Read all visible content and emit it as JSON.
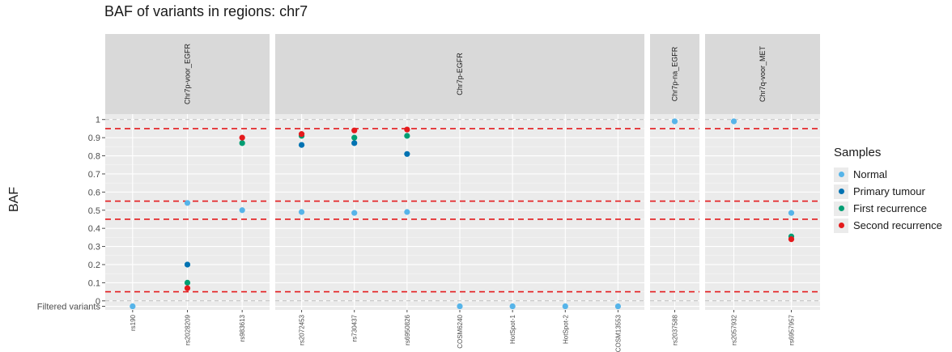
{
  "chart_data": {
    "type": "scatter",
    "title": "BAF of variants in regions: chr7",
    "xlabel": "",
    "ylabel": "BAF",
    "ylim": [
      -0.05,
      1.03
    ],
    "yticks": [
      {
        "value": 1,
        "label": "1"
      },
      {
        "value": 0.9,
        "label": "0.9"
      },
      {
        "value": 0.8,
        "label": "0.8"
      },
      {
        "value": 0.7,
        "label": "0.7"
      },
      {
        "value": 0.6,
        "label": "0.6"
      },
      {
        "value": 0.5,
        "label": "0.5"
      },
      {
        "value": 0.4,
        "label": "0.4"
      },
      {
        "value": 0.3,
        "label": "0.3"
      },
      {
        "value": 0.2,
        "label": "0.2"
      },
      {
        "value": 0.1,
        "label": "0.1"
      },
      {
        "value": 0,
        "label": "0"
      },
      {
        "value": -0.03,
        "label": "Filtered variants"
      }
    ],
    "reference_lines": [
      0.95,
      0.55,
      0.45,
      0.05
    ],
    "panels": [
      {
        "name": "Chr7p-voor_EGFR",
        "variants": [
          "rs190",
          "rs2028209",
          "rs983613"
        ]
      },
      {
        "name": "Chr7p-EGFR",
        "variants": [
          "rs2072453",
          "rs730437",
          "rs6950826",
          "COSM6240",
          "HotSpot-1",
          "HotSpot-2",
          "COSM13553"
        ]
      },
      {
        "name": "Chr7p-na_EGFR",
        "variants": [
          "rs2037588"
        ]
      },
      {
        "name": "Chr7q-voor_MET",
        "variants": [
          "rs2057932",
          "rs6957957"
        ]
      }
    ],
    "legend": {
      "title": "Samples",
      "position": "right"
    },
    "colors": {
      "Normal": "#56b4e9",
      "Primary tumour": "#0072b2",
      "First recurrence": "#009e73",
      "Second recurrence": "#e41a1c"
    },
    "series": [
      {
        "name": "Normal",
        "points": [
          {
            "variant": "rs190",
            "y": -0.03
          },
          {
            "variant": "rs2028209",
            "y": 0.54
          },
          {
            "variant": "rs983613",
            "y": 0.5
          },
          {
            "variant": "rs2072453",
            "y": 0.49
          },
          {
            "variant": "rs730437",
            "y": 0.485
          },
          {
            "variant": "rs6950826",
            "y": 0.49
          },
          {
            "variant": "COSM6240",
            "y": -0.03
          },
          {
            "variant": "HotSpot-1",
            "y": -0.03
          },
          {
            "variant": "HotSpot-2",
            "y": -0.03
          },
          {
            "variant": "COSM13553",
            "y": -0.03
          },
          {
            "variant": "rs2037588",
            "y": 0.99
          },
          {
            "variant": "rs2057932",
            "y": 0.99
          },
          {
            "variant": "rs6957957",
            "y": 0.485
          }
        ]
      },
      {
        "name": "Primary tumour",
        "points": [
          {
            "variant": "rs2028209",
            "y": 0.2
          },
          {
            "variant": "rs2072453",
            "y": 0.86
          },
          {
            "variant": "rs730437",
            "y": 0.87
          },
          {
            "variant": "rs6950826",
            "y": 0.81
          }
        ]
      },
      {
        "name": "First recurrence",
        "points": [
          {
            "variant": "rs2028209",
            "y": 0.1
          },
          {
            "variant": "rs983613",
            "y": 0.87
          },
          {
            "variant": "rs2072453",
            "y": 0.91
          },
          {
            "variant": "rs730437",
            "y": 0.9
          },
          {
            "variant": "rs6950826",
            "y": 0.91
          },
          {
            "variant": "rs6957957",
            "y": 0.355
          }
        ]
      },
      {
        "name": "Second recurrence",
        "points": [
          {
            "variant": "rs2028209",
            "y": 0.07
          },
          {
            "variant": "rs983613",
            "y": 0.9
          },
          {
            "variant": "rs2072453",
            "y": 0.92
          },
          {
            "variant": "rs730437",
            "y": 0.94
          },
          {
            "variant": "rs6950826",
            "y": 0.945
          },
          {
            "variant": "rs6957957",
            "y": 0.34
          }
        ]
      }
    ]
  }
}
